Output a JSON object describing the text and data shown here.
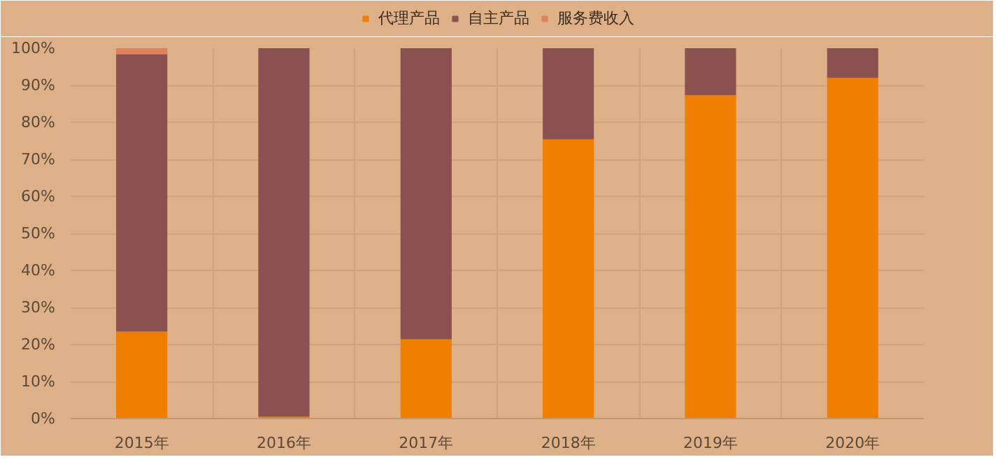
{
  "chart_data": {
    "type": "bar",
    "stacked": true,
    "categories": [
      "2015年",
      "2016年",
      "2017年",
      "2018年",
      "2019年",
      "2020年"
    ],
    "series": [
      {
        "name": "代理产品",
        "color": "#f07e00",
        "values": [
          23.5,
          0.5,
          21.4,
          75.4,
          87.3,
          92
        ]
      },
      {
        "name": "自主产品",
        "color": "#8b5150",
        "values": [
          74.9,
          99.5,
          78.6,
          24.6,
          12.7,
          8
        ]
      },
      {
        "name": "服务费收入",
        "color": "#e0805c",
        "values": [
          1.6,
          0,
          0,
          0,
          0,
          0
        ]
      }
    ],
    "ylim": [
      0,
      100
    ],
    "yticks": [
      {
        "value": 0,
        "label": "0%"
      },
      {
        "value": 10,
        "label": "10%"
      },
      {
        "value": 20,
        "label": "20%"
      },
      {
        "value": 30,
        "label": "30%"
      },
      {
        "value": 40,
        "label": "40%"
      },
      {
        "value": 50,
        "label": "50%"
      },
      {
        "value": 60,
        "label": "60%"
      },
      {
        "value": 70,
        "label": "70%"
      },
      {
        "value": 80,
        "label": "80%"
      },
      {
        "value": 90,
        "label": "90%"
      },
      {
        "value": 100,
        "label": "100%"
      }
    ],
    "grid": true,
    "legend": "top"
  }
}
